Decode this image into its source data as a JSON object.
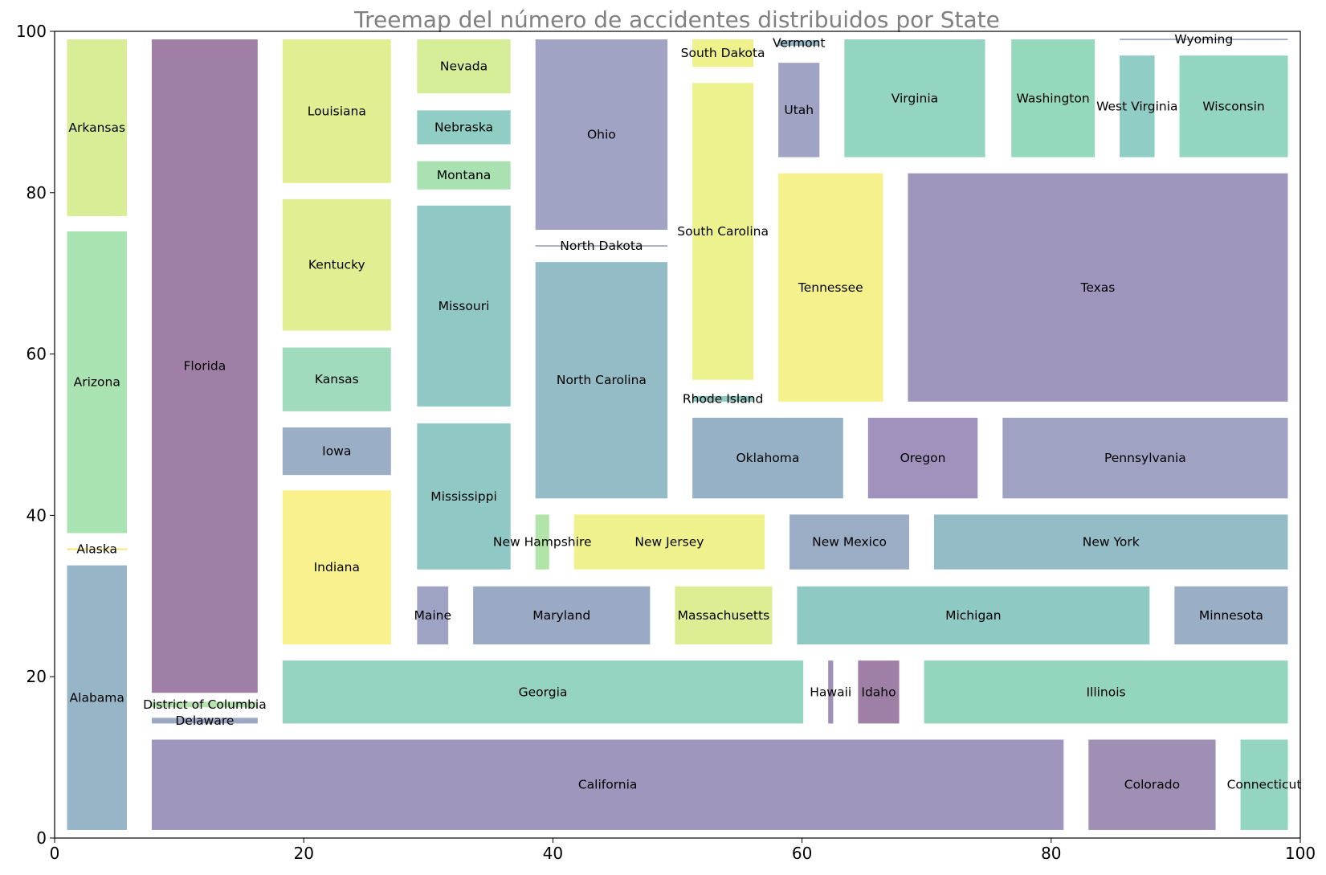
{
  "chart_data": {
    "type": "treemap",
    "title": "Treemap del número de accidentes distribuidos por State",
    "xlim": [
      0,
      100
    ],
    "ylim": [
      0,
      100
    ],
    "x_ticks": [
      0,
      20,
      40,
      60,
      80,
      100
    ],
    "y_ticks": [
      0,
      20,
      40,
      60,
      80,
      100
    ],
    "grid": false,
    "cells": [
      {
        "label": "Alabama",
        "x0": 1,
        "x1": 5.8,
        "y0": 1,
        "y1": 33.8,
        "color": "#96b5c6"
      },
      {
        "label": "Alaska",
        "x0": 1,
        "x1": 5.8,
        "y0": 35.7,
        "y1": 35.9,
        "color": "#f5e873"
      },
      {
        "label": "Arizona",
        "x0": 1,
        "x1": 5.8,
        "y0": 37.8,
        "y1": 75.2,
        "color": "#a9e3b2"
      },
      {
        "label": "Arkansas",
        "x0": 1,
        "x1": 5.8,
        "y0": 77.1,
        "y1": 99,
        "color": "#d8ed96"
      },
      {
        "label": "California",
        "x0": 7.8,
        "x1": 81,
        "y0": 1,
        "y1": 12.2,
        "color": "#a096bd"
      },
      {
        "label": "Colorado",
        "x0": 83,
        "x1": 93.2,
        "y0": 1,
        "y1": 12.2,
        "color": "#a08fb4"
      },
      {
        "label": "Connecticut",
        "x0": 95.2,
        "x1": 99,
        "y0": 1,
        "y1": 12.2,
        "color": "#93d5c1"
      },
      {
        "label": "Delaware",
        "x0": 7.8,
        "x1": 16.3,
        "y0": 14.2,
        "y1": 14.9,
        "color": "#9aa8c3"
      },
      {
        "label": "District of Columbia",
        "x0": 7.8,
        "x1": 16.3,
        "y0": 16.2,
        "y1": 16.9,
        "color": "#b6e2b0"
      },
      {
        "label": "Florida",
        "x0": 7.8,
        "x1": 16.3,
        "y0": 18,
        "y1": 99,
        "color": "#a07fa7"
      },
      {
        "label": "Georgia",
        "x0": 18.3,
        "x1": 60.1,
        "y0": 14.2,
        "y1": 22,
        "color": "#94d3c0"
      },
      {
        "label": "Hawaii",
        "x0": 62.1,
        "x1": 62.5,
        "y0": 14.2,
        "y1": 22,
        "color": "#a08fb4"
      },
      {
        "label": "Idaho",
        "x0": 64.5,
        "x1": 67.8,
        "y0": 14.2,
        "y1": 22,
        "color": "#a07fa7"
      },
      {
        "label": "Illinois",
        "x0": 69.8,
        "x1": 99,
        "y0": 14.2,
        "y1": 22,
        "color": "#94d5bd"
      },
      {
        "label": "Indiana",
        "x0": 18.3,
        "x1": 27,
        "y0": 24,
        "y1": 43.1,
        "color": "#f8f18e"
      },
      {
        "label": "Iowa",
        "x0": 18.3,
        "x1": 27,
        "y0": 45,
        "y1": 50.9,
        "color": "#9aafc5"
      },
      {
        "label": "Kansas",
        "x0": 18.3,
        "x1": 27,
        "y0": 52.9,
        "y1": 60.8,
        "color": "#9fdbbc"
      },
      {
        "label": "Kentucky",
        "x0": 18.3,
        "x1": 27,
        "y0": 62.9,
        "y1": 79.2,
        "color": "#e1ee91"
      },
      {
        "label": "Louisiana",
        "x0": 18.3,
        "x1": 27,
        "y0": 81.2,
        "y1": 99,
        "color": "#e1ee91"
      },
      {
        "label": "Maine",
        "x0": 29.1,
        "x1": 31.6,
        "y0": 24,
        "y1": 31.2,
        "color": "#9fa3c3"
      },
      {
        "label": "Maryland",
        "x0": 33.6,
        "x1": 47.8,
        "y0": 24,
        "y1": 31.2,
        "color": "#9aa9c4"
      },
      {
        "label": "Massachusetts",
        "x0": 49.8,
        "x1": 57.6,
        "y0": 24,
        "y1": 31.2,
        "color": "#dced94"
      },
      {
        "label": "Michigan",
        "x0": 59.6,
        "x1": 87.9,
        "y0": 24,
        "y1": 31.2,
        "color": "#8fc9c4"
      },
      {
        "label": "Minnesota",
        "x0": 89.9,
        "x1": 99,
        "y0": 24,
        "y1": 31.2,
        "color": "#9aafc5"
      },
      {
        "label": "Mississippi",
        "x0": 29.1,
        "x1": 36.6,
        "y0": 33.3,
        "y1": 51.4,
        "color": "#8fc8c5"
      },
      {
        "label": "New Hampshire",
        "x0": 38.6,
        "x1": 39.7,
        "y0": 33.3,
        "y1": 40.1,
        "color": "#b3e4a7"
      },
      {
        "label": "New Jersey",
        "x0": 41.7,
        "x1": 57,
        "y0": 33.3,
        "y1": 40.1,
        "color": "#eef18c"
      },
      {
        "label": "New Mexico",
        "x0": 59,
        "x1": 68.6,
        "y0": 33.3,
        "y1": 40.1,
        "color": "#9aadc4"
      },
      {
        "label": "New York",
        "x0": 70.6,
        "x1": 99,
        "y0": 33.3,
        "y1": 40.1,
        "color": "#94bcc6"
      },
      {
        "label": "Missouri",
        "x0": 29.1,
        "x1": 36.6,
        "y0": 53.5,
        "y1": 78.4,
        "color": "#8fc8c5"
      },
      {
        "label": "Montana",
        "x0": 29.1,
        "x1": 36.6,
        "y0": 80.4,
        "y1": 83.9,
        "color": "#a9e1b3"
      },
      {
        "label": "Nebraska",
        "x0": 29.1,
        "x1": 36.6,
        "y0": 86,
        "y1": 90.2,
        "color": "#8fcdc5"
      },
      {
        "label": "Nevada",
        "x0": 29.1,
        "x1": 36.6,
        "y0": 92.3,
        "y1": 99,
        "color": "#d6ed98"
      },
      {
        "label": "North Carolina",
        "x0": 38.6,
        "x1": 49.2,
        "y0": 42.1,
        "y1": 71.4,
        "color": "#94bcc6"
      },
      {
        "label": "North Dakota",
        "x0": 38.6,
        "x1": 49.2,
        "y0": 73.3,
        "y1": 73.5,
        "color": "#a8b0c4"
      },
      {
        "label": "Ohio",
        "x0": 38.6,
        "x1": 49.2,
        "y0": 75.4,
        "y1": 99,
        "color": "#a0a3c4"
      },
      {
        "label": "Oklahoma",
        "x0": 51.2,
        "x1": 63.3,
        "y0": 42.1,
        "y1": 52.1,
        "color": "#96b1c6"
      },
      {
        "label": "Oregon",
        "x0": 65.3,
        "x1": 74.1,
        "y0": 42.1,
        "y1": 52.1,
        "color": "#a092bd"
      },
      {
        "label": "Pennsylvania",
        "x0": 76.1,
        "x1": 99,
        "y0": 42.1,
        "y1": 52.1,
        "color": "#a0a2c4"
      },
      {
        "label": "Rhode Island",
        "x0": 51.2,
        "x1": 56.1,
        "y0": 54.1,
        "y1": 54.8,
        "color": "#8fcbc4"
      },
      {
        "label": "South Carolina",
        "x0": 51.2,
        "x1": 56.1,
        "y0": 56.8,
        "y1": 93.6,
        "color": "#ebf28e"
      },
      {
        "label": "South Dakota",
        "x0": 51.2,
        "x1": 56.1,
        "y0": 95.6,
        "y1": 99,
        "color": "#eef18c"
      },
      {
        "label": "Tennessee",
        "x0": 58.1,
        "x1": 66.5,
        "y0": 54.1,
        "y1": 82.4,
        "color": "#f5f18d"
      },
      {
        "label": "Texas",
        "x0": 68.5,
        "x1": 99,
        "y0": 54.1,
        "y1": 82.4,
        "color": "#a096bd"
      },
      {
        "label": "Utah",
        "x0": 58.1,
        "x1": 61.4,
        "y0": 84.4,
        "y1": 96.1,
        "color": "#a0a3c4"
      },
      {
        "label": "Vermont",
        "x0": 58.1,
        "x1": 61.4,
        "y0": 98.2,
        "y1": 98.9,
        "color": "#96bac6"
      },
      {
        "label": "Virginia",
        "x0": 63.4,
        "x1": 74.7,
        "y0": 84.4,
        "y1": 99,
        "color": "#94d5c1"
      },
      {
        "label": "Washington",
        "x0": 76.8,
        "x1": 83.5,
        "y0": 84.4,
        "y1": 99,
        "color": "#94d9bc"
      },
      {
        "label": "West Virginia",
        "x0": 85.5,
        "x1": 88.3,
        "y0": 84.4,
        "y1": 97,
        "color": "#8fcdc5"
      },
      {
        "label": "Wisconsin",
        "x0": 90.3,
        "x1": 99,
        "y0": 84.4,
        "y1": 97,
        "color": "#94d5c1"
      },
      {
        "label": "Wyoming",
        "x0": 85.5,
        "x1": 99,
        "y0": 98.9,
        "y1": 99.1,
        "color": "#a8b0c4"
      }
    ]
  }
}
